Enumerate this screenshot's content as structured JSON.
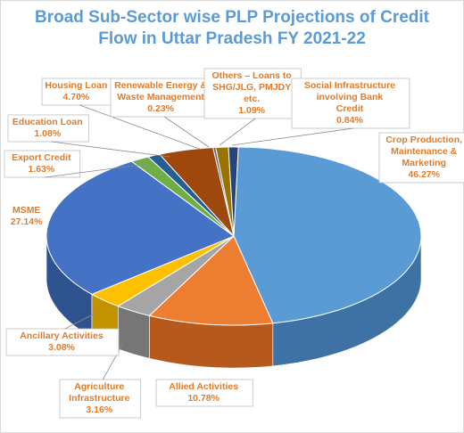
{
  "chart_data": {
    "type": "pie",
    "title_lines": [
      "Broad Sub-Sector wise PLP Projections of Credit",
      "Flow in Uttar Pradesh FY 2021-22"
    ],
    "slices": [
      {
        "label_lines": [
          "Crop Production,",
          "Maintenance &",
          "Marketing"
        ],
        "value_label": "46.27%",
        "value": 46.27,
        "color": "#5b9bd5",
        "side": "#3f72a4"
      },
      {
        "label_lines": [
          "Allied Activities"
        ],
        "value_label": "10.78%",
        "value": 10.78,
        "color": "#ed7d31",
        "side": "#b55a1c"
      },
      {
        "label_lines": [
          "Agriculture",
          "Infrastructure"
        ],
        "value_label": "3.16%",
        "value": 3.16,
        "color": "#a5a5a5",
        "side": "#767676"
      },
      {
        "label_lines": [
          "Ancillary Activities"
        ],
        "value_label": "3.08%",
        "value": 3.08,
        "color": "#ffc000",
        "side": "#c29200"
      },
      {
        "label_lines": [
          "MSME"
        ],
        "value_label": "27.14%",
        "value": 27.14,
        "color": "#4472c4",
        "side": "#2f538f"
      },
      {
        "label_lines": [
          "Export Credit"
        ],
        "value_label": "1.63%",
        "value": 1.63,
        "color": "#70ad47",
        "side": "#4f7d32"
      },
      {
        "label_lines": [
          "Education Loan"
        ],
        "value_label": "1.08%",
        "value": 1.08,
        "color": "#255e91",
        "side": "#1a4468"
      },
      {
        "label_lines": [
          "Housing Loan"
        ],
        "value_label": "4.70%",
        "value": 4.7,
        "color": "#9e480e",
        "side": "#6e320a"
      },
      {
        "label_lines": [
          "Renewable Energy &",
          "Waste Management"
        ],
        "value_label": "0.23%",
        "value": 0.23,
        "color": "#636363",
        "side": "#444444"
      },
      {
        "label_lines": [
          "Others – Loans to",
          "SHG/JLG, PMJDY",
          "etc."
        ],
        "value_label": "1.09%",
        "value": 1.09,
        "color": "#997300",
        "side": "#6b5000"
      },
      {
        "label_lines": [
          "Social Infrastructure",
          "involving Bank",
          "Credit"
        ],
        "value_label": "0.84%",
        "value": 0.84,
        "color": "#264478",
        "side": "#1a2f54"
      }
    ],
    "legend": "none"
  }
}
